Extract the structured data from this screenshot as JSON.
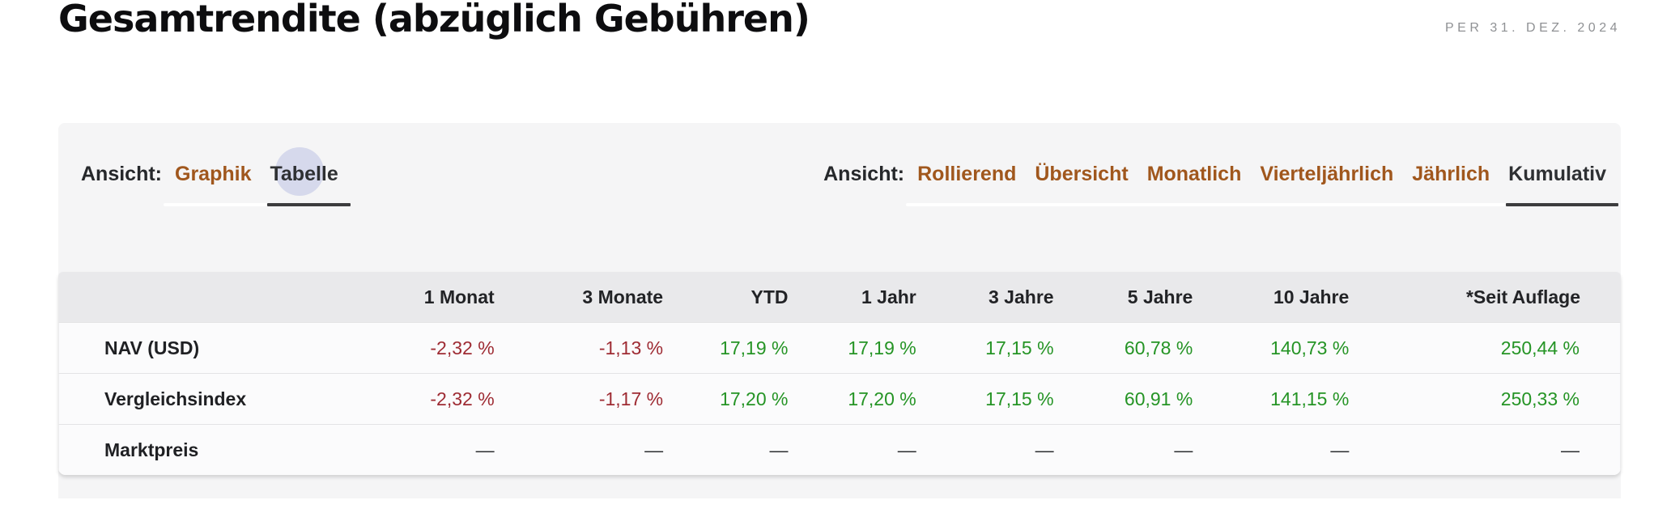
{
  "header": {
    "title": "Gesamtrendite (abzüglich Gebühren)",
    "as_of": "PER 31. DEZ. 2024"
  },
  "view_toggle": {
    "caption": "Ansicht:",
    "options": [
      {
        "label": "Graphik",
        "selected": false
      },
      {
        "label": "Tabelle",
        "selected": true
      }
    ]
  },
  "period_toggle": {
    "caption": "Ansicht:",
    "options": [
      {
        "label": "Rollierend",
        "selected": false
      },
      {
        "label": "Übersicht",
        "selected": false
      },
      {
        "label": "Monatlich",
        "selected": false
      },
      {
        "label": "Vierteljährlich",
        "selected": false
      },
      {
        "label": "Jährlich",
        "selected": false
      },
      {
        "label": "Kumulativ",
        "selected": true
      }
    ]
  },
  "table": {
    "columns": [
      "",
      "1 Monat",
      "3 Monate",
      "YTD",
      "1 Jahr",
      "3 Jahre",
      "5 Jahre",
      "10 Jahre",
      "*Seit Auflage"
    ],
    "rows": [
      {
        "label": "NAV (USD)",
        "values": [
          "-2,32 %",
          "-1,13 %",
          "17,19 %",
          "17,19 %",
          "17,15 %",
          "60,78 %",
          "140,73 %",
          "250,44 %"
        ]
      },
      {
        "label": "Vergleichsindex",
        "values": [
          "-2,32 %",
          "-1,17 %",
          "17,20 %",
          "17,20 %",
          "17,15 %",
          "60,91 %",
          "141,15 %",
          "250,33 %"
        ]
      },
      {
        "label": "Marktpreis",
        "values": [
          "—",
          "—",
          "—",
          "—",
          "—",
          "—",
          "—",
          "—"
        ]
      }
    ]
  },
  "colors": {
    "positive": "#259425",
    "negative": "#9e2b33",
    "link": "#a0571d",
    "selected_text": "#2e3033",
    "selected_underline": "#3c3c3e"
  }
}
